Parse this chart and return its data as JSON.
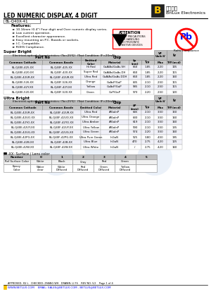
{
  "title_main": "LED NUMERIC DISPLAY, 4 DIGIT",
  "part_number": "BL-Q40X-41",
  "company_name": "BriLux Electronics",
  "company_chinese": "百襄光电",
  "features_title": "Features:",
  "features": [
    "10.16mm (0.4\") Four digit and Over numeric display series.",
    "Low current operation.",
    "Excellent character appearance.",
    "Easy mounting on P.C. Boards or sockets.",
    "I.C. Compatible.",
    "ROHS Compliance."
  ],
  "super_bright_title": "Super Bright",
  "super_bright_subtitle": "Electrical-optical characteristics: (Ta=25℃)  (Test Condition: IF=20mA)",
  "sb_headers": [
    "Part No",
    "",
    "Chip",
    "",
    "VF Unit:V",
    "",
    "Iv"
  ],
  "sb_sub_headers": [
    "Common Cathode",
    "Common Anode",
    "Emitted Color",
    "Material",
    "λp (nm)",
    "Typ",
    "Max",
    "TYP.(mcd)"
  ],
  "super_bright_rows": [
    [
      "BL-Q40E-425-XX",
      "BL-Q40F-425-XX",
      "Hi Red",
      "GaAlAs/GaAs.SH",
      "660",
      "1.85",
      "2.20",
      "105"
    ],
    [
      "BL-Q40E-420-XX",
      "BL-Q40F-420-XX",
      "Super Red",
      "GaAlAs/GaAs.DH",
      "660",
      "1.85",
      "2.20",
      "115"
    ],
    [
      "BL-Q40E-42UR-XX",
      "BL-Q40F-42UR-XX",
      "Ultra Red",
      "GaAlAs/GaAs.DDH",
      "660",
      "1.85",
      "2.20",
      "160"
    ],
    [
      "BL-Q40E-526-XX",
      "BL-Q40F-526-XX",
      "Orange",
      "GaAsP/GaP",
      "635",
      "2.10",
      "2.50",
      "115"
    ],
    [
      "BL-Q40E-42Y-XX",
      "BL-Q40F-42Y-XX",
      "Yellow",
      "GaAsP/GaP",
      "585",
      "2.10",
      "2.50",
      "115"
    ],
    [
      "BL-Q40E-520-XX",
      "BL-Q40F-520-XX",
      "Green",
      "GaP/GaP",
      "570",
      "2.20",
      "2.50",
      "120"
    ]
  ],
  "ultra_bright_title": "Ultra Bright",
  "ultra_bright_subtitle": "Electrical-optical characteristics: (Ta=25℃)  (Test Condition: IF=20mA)",
  "ub_sub_headers": [
    "Common Cathode",
    "Common Anode",
    "Emitted Color",
    "Material",
    "λP (mm)",
    "Typ",
    "Max",
    "TYP.(mcd)"
  ],
  "ultra_bright_rows": [
    [
      "BL-Q40E-42UR-XX",
      "BL-Q40F-42UR-XX",
      "Ultra Red",
      "AlGaInP",
      "645",
      "2.10",
      "3.50",
      "150"
    ],
    [
      "BL-Q40E-42UO-XX",
      "BL-Q40F-42UO-XX",
      "Ultra Orange",
      "AlGaInP",
      "630",
      "2.10",
      "3.50",
      "160"
    ],
    [
      "BL-Q40E-42YO-XX",
      "BL-Q40F-42YO-XX",
      "Ultra Amber",
      "AlGaInP",
      "619",
      "2.10",
      "3.50",
      "160"
    ],
    [
      "BL-Q40E-42UY-XX",
      "BL-Q40F-42UY-XX",
      "Ultra Yellow",
      "AlGaInP",
      "590",
      "2.10",
      "3.50",
      "135"
    ],
    [
      "BL-Q40E-42UG-XX",
      "BL-Q40F-42UG-XX",
      "Ultra Green",
      "AlGaInP",
      "574",
      "2.20",
      "3.50",
      "160"
    ],
    [
      "BL-Q40E-42PG-XX",
      "BL-Q40F-42PG-XX",
      "Ultra Pure Green",
      "InGaN",
      "525",
      "3.80",
      "4.50",
      "195"
    ],
    [
      "BL-Q40E-42B-XX",
      "BL-Q40F-42B-XX",
      "Ultra Blue",
      "InGaN",
      "470",
      "2.75",
      "4.20",
      "125"
    ],
    [
      "BL-Q40E-42W-XX",
      "BL-Q40F-42W-XX",
      "Ultra White",
      "InGaN",
      "/",
      "2.75",
      "4.20",
      "160"
    ]
  ],
  "surface_title": "-XX: Surface / Lens color",
  "surface_headers": [
    "Number",
    "0",
    "1",
    "2",
    "3",
    "4",
    "5"
  ],
  "surface_row1": [
    "Ref Surface Color",
    "White",
    "Black",
    "Gray",
    "Red",
    "Green",
    ""
  ],
  "surface_row2": [
    "Epoxy Color",
    "Water clear",
    "White Diffused",
    "Red Diffused",
    "Green Diffused",
    "Yellow Diffused",
    ""
  ],
  "footer_text": "APPROVED: XU L   CHECKED: ZHANG WH   DRAWN: LI FS    REV NO: V.2    Page 1 of 4",
  "footer_url": "WWW.BETLUX.COM    EMAIL: SALES@BETLUX.COM , BETLUX@BETLUX.COM",
  "bg_color": "#ffffff",
  "header_bg": "#d0d0d0",
  "row_alt": "#e8e8f0",
  "border_color": "#888888",
  "highlight_yellow": "#ffff00",
  "logo_bg": "#222222",
  "logo_letter": "#f5c000"
}
